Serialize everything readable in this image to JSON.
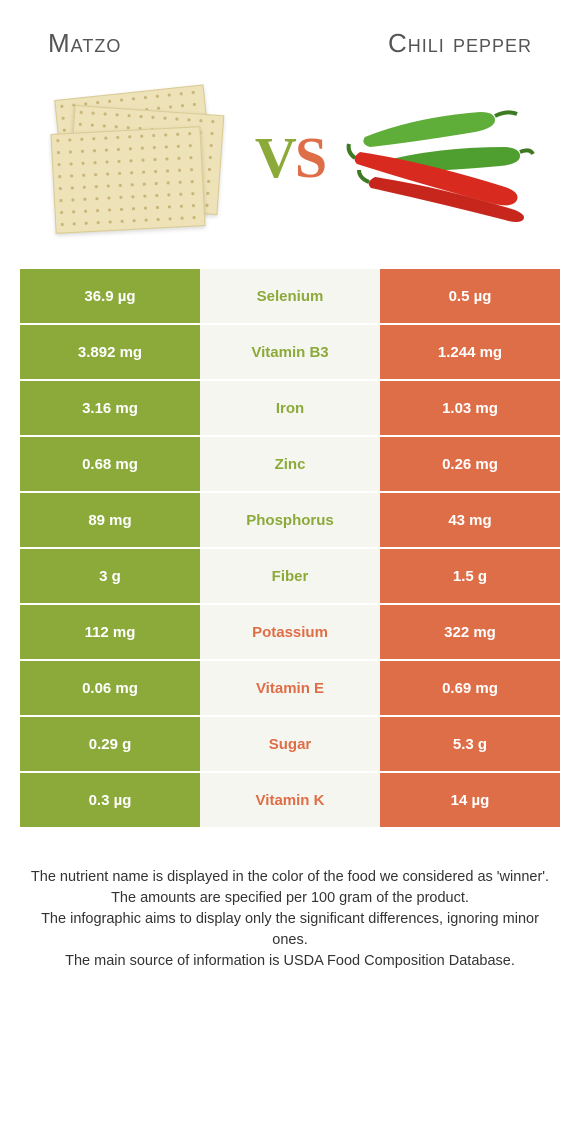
{
  "header": {
    "left": "Matzo",
    "right": "Chili pepper"
  },
  "colors": {
    "left": "#8baa3a",
    "right": "#de6e47",
    "nutrient_bg": "#f6f6f0",
    "left_text_on_bg": "#8baa3a",
    "right_text_on_bg": "#de6e47"
  },
  "vs": {
    "v": "V",
    "s": "S"
  },
  "rows": [
    {
      "left": "36.9 µg",
      "nutrient": "Selenium",
      "right": "0.5 µg",
      "winner": "left"
    },
    {
      "left": "3.892 mg",
      "nutrient": "Vitamin B3",
      "right": "1.244 mg",
      "winner": "left"
    },
    {
      "left": "3.16 mg",
      "nutrient": "Iron",
      "right": "1.03 mg",
      "winner": "left"
    },
    {
      "left": "0.68 mg",
      "nutrient": "Zinc",
      "right": "0.26 mg",
      "winner": "left"
    },
    {
      "left": "89 mg",
      "nutrient": "Phosphorus",
      "right": "43 mg",
      "winner": "left"
    },
    {
      "left": "3 g",
      "nutrient": "Fiber",
      "right": "1.5 g",
      "winner": "left"
    },
    {
      "left": "112 mg",
      "nutrient": "Potassium",
      "right": "322 mg",
      "winner": "right"
    },
    {
      "left": "0.06 mg",
      "nutrient": "Vitamin E",
      "right": "0.69 mg",
      "winner": "right"
    },
    {
      "left": "0.29 g",
      "nutrient": "Sugar",
      "right": "5.3 g",
      "winner": "right"
    },
    {
      "left": "0.3 µg",
      "nutrient": "Vitamin K",
      "right": "14 µg",
      "winner": "right"
    }
  ],
  "footer": {
    "line1": "The nutrient name is displayed in the color of the food we considered as 'winner'.",
    "line2": "The amounts are specified per 100 gram of the product.",
    "line3": "The infographic aims to display only the significant differences, ignoring minor ones.",
    "line4": "The main source of information is USDA Food Composition Database."
  }
}
